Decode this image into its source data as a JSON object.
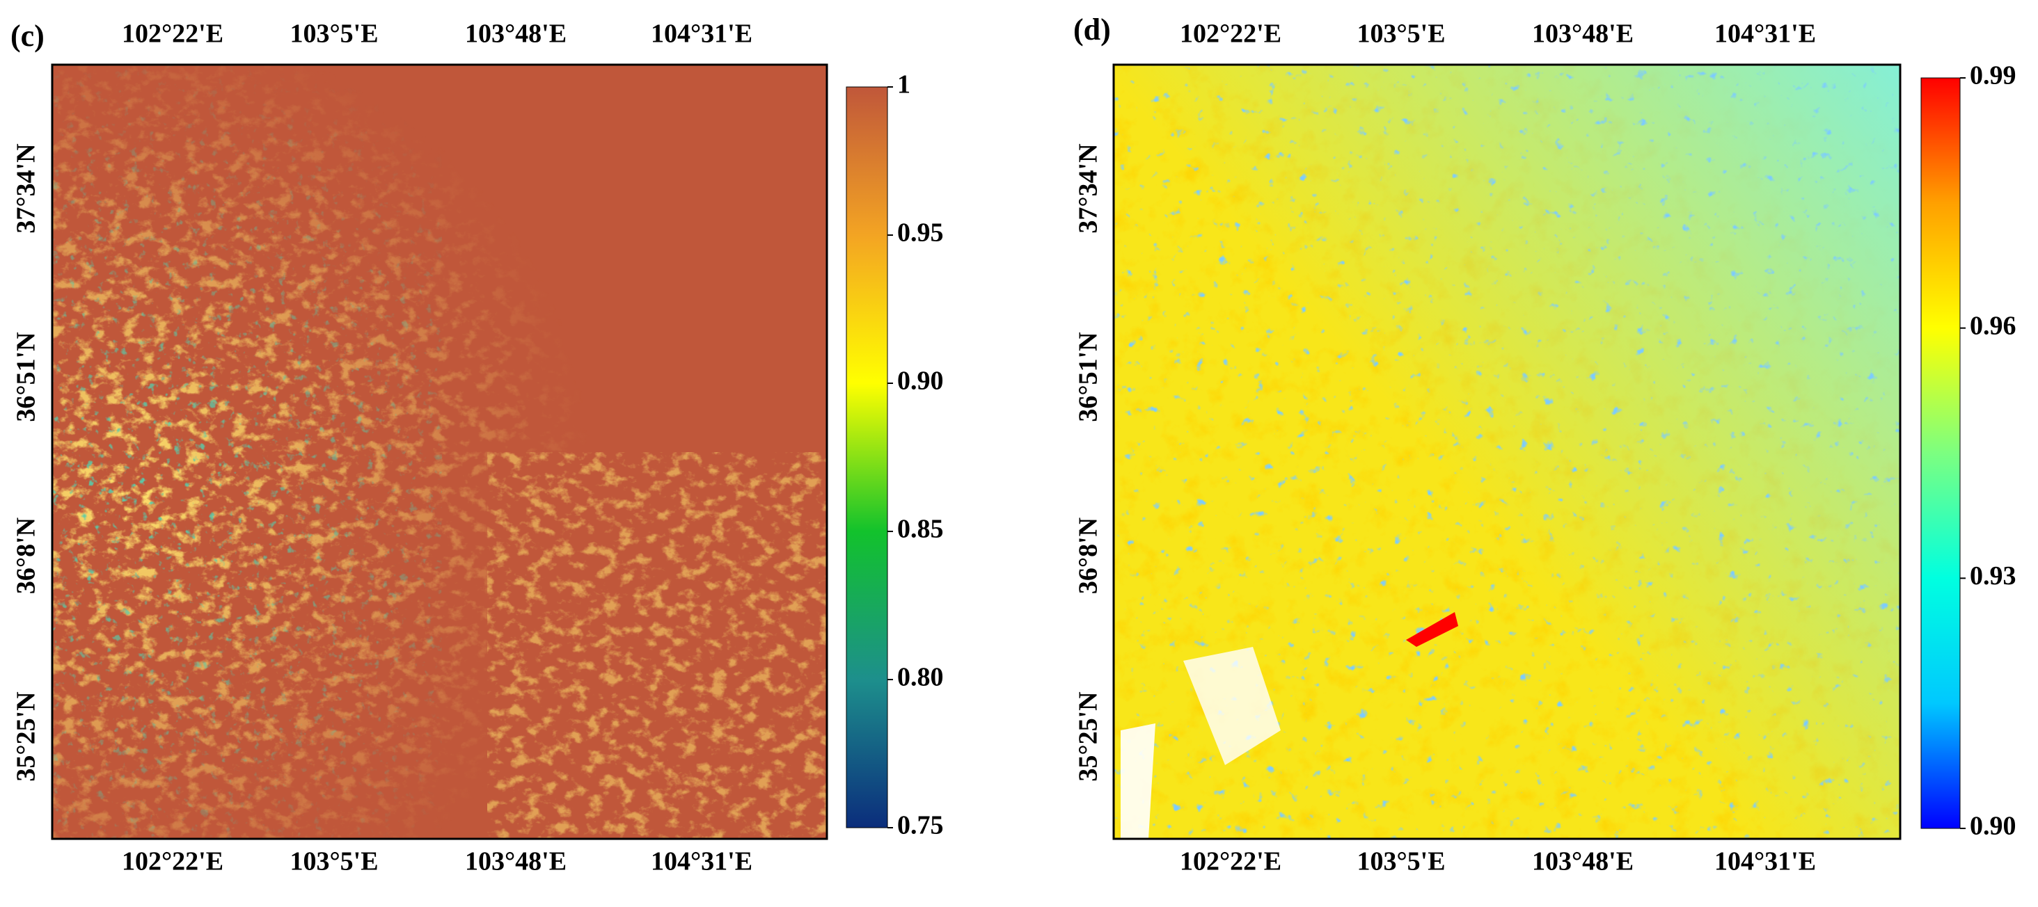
{
  "panels": [
    {
      "label": "(c)",
      "lon_labels": [
        "102°22'E",
        "103°5'E",
        "103°48'E",
        "104°31'E"
      ],
      "lat_labels": [
        "37°34'N",
        "36°51'N",
        "36°8'N",
        "35°25'N"
      ],
      "colorbar": {
        "lim": [
          0.75,
          1
        ],
        "ticks": [
          1,
          0.95,
          {
            "value": 0.9,
            "label": "0.90"
          },
          0.85,
          {
            "value": 0.8,
            "label": "0.80"
          },
          0.75
        ],
        "colors": [
          "#0b2d7c",
          "#1d8f8c",
          "#12c22c",
          "#ffff00",
          "#f3a423",
          "#c0573a"
        ]
      }
    },
    {
      "label": "(d)",
      "lon_labels": [
        "102°22'E",
        "103°5'E",
        "103°48'E",
        "104°31'E"
      ],
      "lat_labels": [
        "37°34'N",
        "36°51'N",
        "36°8'N",
        "35°25'N"
      ],
      "colorbar": {
        "lim": [
          0.9,
          0.99
        ],
        "ticks": [
          0.99,
          0.96,
          0.93,
          {
            "value": 0.9,
            "label": "0.90"
          }
        ],
        "colors": [
          "#0000ff",
          "#00c8ff",
          "#00ffe0",
          "#7cff80",
          "#ffff00",
          "#ffa000",
          "#ff0000"
        ]
      }
    }
  ]
}
